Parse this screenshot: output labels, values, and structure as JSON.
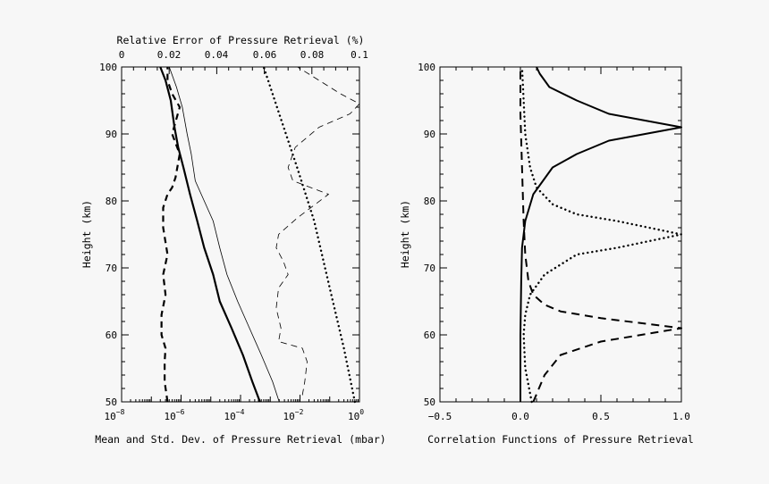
{
  "chart_data": [
    {
      "type": "line",
      "panel": "left",
      "title_top": "Relative Error of Pressure Retrieval (%)",
      "xlabel": "Mean and Std. Dev. of Pressure Retrieval (mbar)",
      "ylabel": "Height (km)",
      "xscale_bottom": "log",
      "xlim_bottom": [
        1e-08,
        1
      ],
      "xticks_bottom": [
        {
          "base": "10",
          "exp": "−8"
        },
        {
          "base": "10",
          "exp": "−6"
        },
        {
          "base": "10",
          "exp": "−4"
        },
        {
          "base": "10",
          "exp": "−2"
        },
        {
          "base": "10",
          "exp": "0"
        }
      ],
      "xlim_top": [
        0,
        0.1
      ],
      "xticks_top": [
        "0",
        "0.02",
        "0.04",
        "0.06",
        "0.08",
        "0.1"
      ],
      "ylim": [
        50,
        100
      ],
      "yticks": [
        "50",
        "60",
        "70",
        "80",
        "90",
        "100"
      ],
      "series": [
        {
          "style": "solid-thick",
          "axis": "bottom-log",
          "x": [
            0.00045,
            0.00025,
            0.00012,
            5e-05,
            2e-05,
            1.2e-05,
            6e-06,
            3.5e-06,
            2e-06,
            1.2e-06,
            8e-07,
            6e-07,
            4.5e-07,
            3e-07,
            2e-07
          ],
          "y": [
            50,
            53,
            57,
            61,
            65,
            69,
            73,
            77,
            81,
            85,
            88,
            91,
            95,
            98,
            100
          ]
        },
        {
          "style": "solid-thin",
          "axis": "bottom-log",
          "x": [
            0.002,
            0.0012,
            0.0005,
            0.0002,
            8e-05,
            3.5e-05,
            2e-05,
            1.2e-05,
            6e-06,
            3e-06,
            2.2e-06,
            1.6e-06,
            1.1e-06,
            7e-07,
            4e-07
          ],
          "y": [
            50,
            53,
            57,
            61,
            65,
            69,
            73,
            77,
            80,
            83,
            87,
            90,
            94,
            97,
            100
          ]
        },
        {
          "style": "dashed-thick",
          "axis": "bottom-log",
          "x": [
            3.5e-07,
            2.8e-07,
            2.8e-07,
            3e-07,
            2.2e-07,
            2.2e-07,
            3e-07,
            2.5e-07,
            3.5e-07,
            2.5e-07,
            2.5e-07,
            3.5e-07,
            5e-07,
            6.5e-07,
            9e-07,
            5e-07,
            9e-07,
            5e-07,
            3.5e-07,
            3.5e-07,
            3.5e-07
          ],
          "y": [
            50,
            53,
            56,
            58,
            60,
            63,
            66,
            69,
            72,
            76,
            79,
            81,
            82,
            83.5,
            87,
            90,
            94,
            96,
            98,
            99,
            100
          ]
        },
        {
          "style": "dotted",
          "axis": "bottom-log",
          "x": [
            0.7,
            0.3,
            0.1,
            0.03,
            0.008,
            0.002,
            0.0006
          ],
          "y": [
            50,
            58,
            67,
            77,
            85,
            93,
            100
          ]
        },
        {
          "style": "dashed-thin",
          "axis": "top-linear",
          "x": [
            0.076,
            0.077,
            0.078,
            0.076,
            0.066,
            0.067,
            0.065,
            0.066,
            0.07,
            0.068,
            0.065,
            0.066,
            0.074,
            0.087,
            0.072,
            0.07,
            0.073,
            0.083,
            0.096,
            0.1,
            0.092,
            0.074
          ],
          "y": [
            51,
            53,
            56,
            58,
            59,
            61,
            64,
            67,
            69,
            71,
            73,
            75,
            77.5,
            81,
            83,
            85,
            88,
            91,
            93,
            94.5,
            96,
            100
          ]
        }
      ]
    },
    {
      "type": "line",
      "panel": "right",
      "xlabel": "Correlation Functions of Pressure Retrieval",
      "ylabel": "Height (km)",
      "xlim": [
        -0.5,
        1.0
      ],
      "xticks": [
        "−0.5",
        "0.0",
        "0.5",
        "1.0"
      ],
      "ylim": [
        50,
        100
      ],
      "yticks": [
        "50",
        "60",
        "70",
        "80",
        "90",
        "100"
      ],
      "series": [
        {
          "style": "solid",
          "x": [
            0.0,
            0.0,
            0.005,
            0.01,
            0.03,
            0.08,
            0.2,
            0.35,
            0.55,
            1.0,
            0.55,
            0.35,
            0.18,
            0.12,
            0.1
          ],
          "y": [
            50,
            60,
            68,
            73,
            77,
            81,
            85,
            87,
            89,
            91,
            93,
            95,
            97,
            99,
            100
          ]
        },
        {
          "style": "dotted",
          "x": [
            0.07,
            0.03,
            0.02,
            0.03,
            0.06,
            0.15,
            0.35,
            0.6,
            1.0,
            0.6,
            0.35,
            0.2,
            0.1,
            0.06,
            0.03,
            0.02,
            0.01
          ],
          "y": [
            50,
            55,
            60,
            63,
            66,
            69,
            72,
            73,
            75,
            77,
            78,
            79.5,
            82,
            85,
            90,
            95,
            100
          ]
        },
        {
          "style": "dashed",
          "x": [
            0.08,
            0.15,
            0.25,
            0.5,
            1.0,
            0.5,
            0.25,
            0.15,
            0.08,
            0.05,
            0.03,
            0.02,
            0.01,
            0.0,
            0.0
          ],
          "y": [
            50,
            54,
            57,
            59,
            61,
            62.5,
            63.5,
            64.5,
            66,
            68,
            72,
            77,
            85,
            93,
            100
          ]
        }
      ]
    }
  ]
}
